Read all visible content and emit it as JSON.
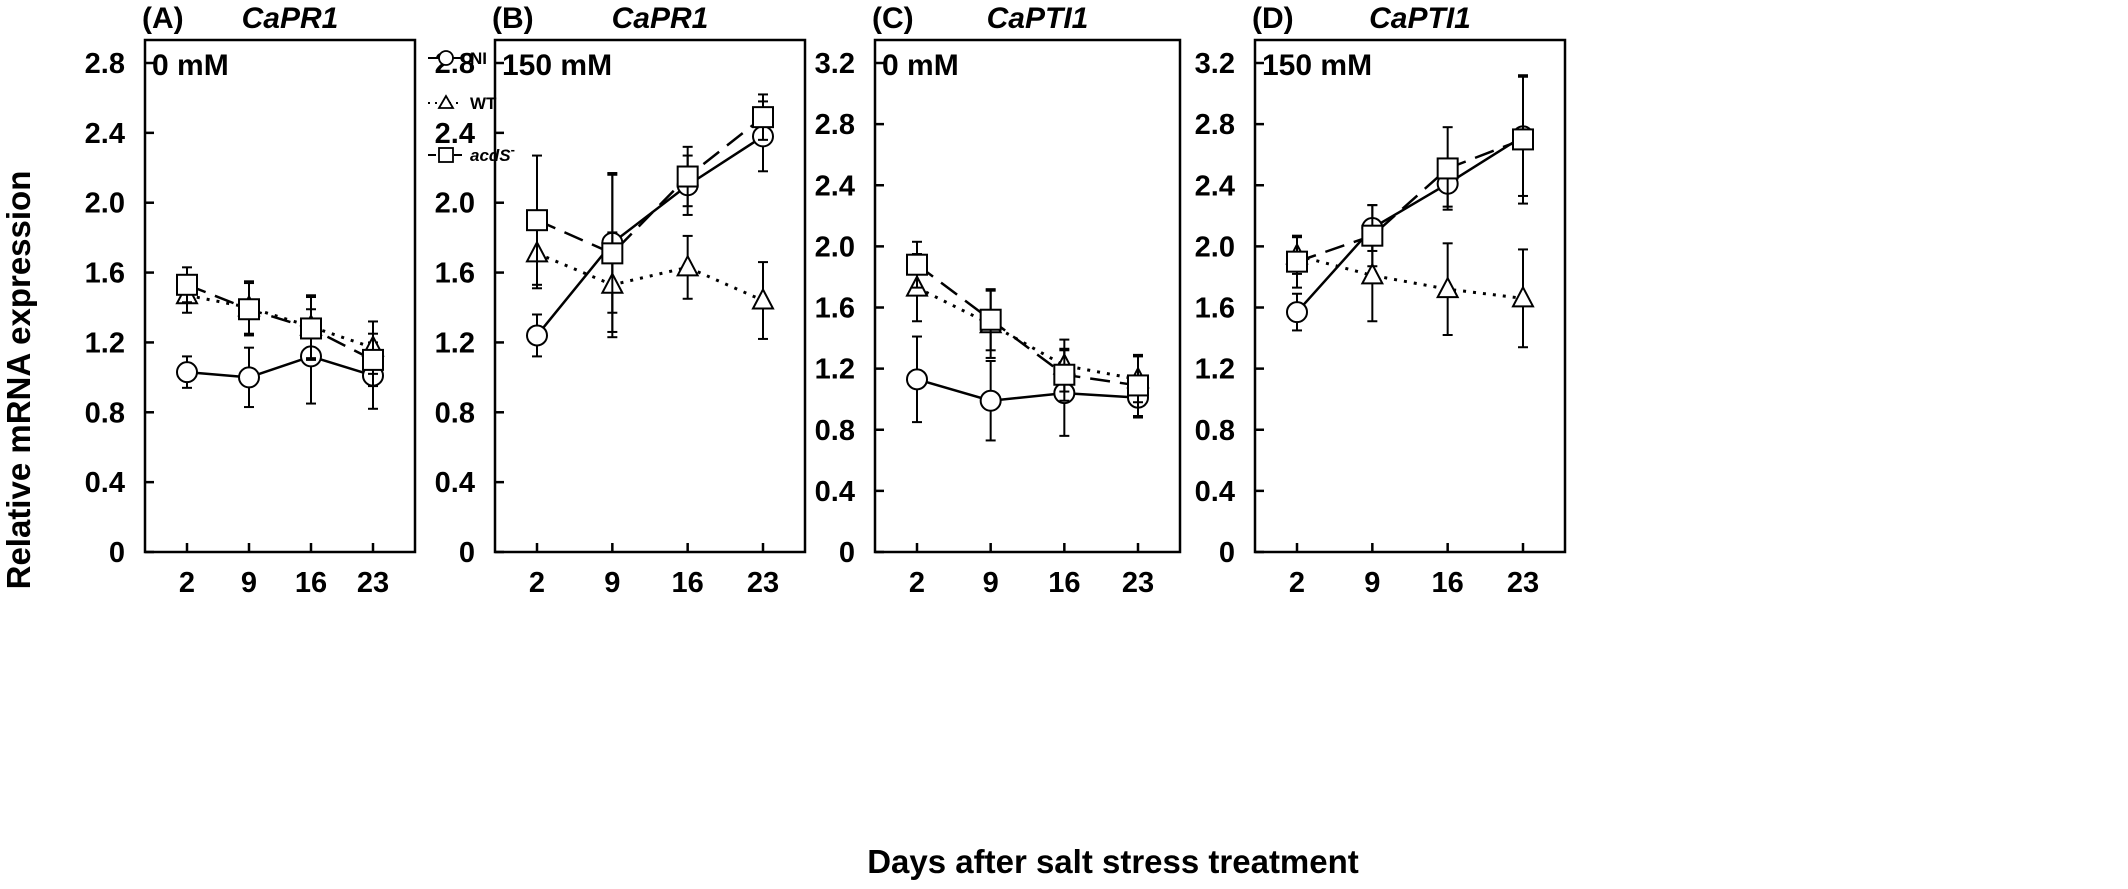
{
  "figure": {
    "ylabel": "Relative mRNA expression",
    "xlabel": "Days after salt stress treatment"
  },
  "legend": {
    "items": [
      {
        "label": "NI",
        "marker": "circle",
        "line": "solid"
      },
      {
        "label": "WT",
        "marker": "triangle",
        "line": "dotted"
      },
      {
        "label": "acdS",
        "superscript": "-",
        "marker": "square",
        "line": "dashed"
      }
    ]
  },
  "chart_data": [
    {
      "type": "line",
      "panel": "(A)",
      "title": "CaPR1",
      "condition": "0 mM",
      "x": [
        2,
        9,
        16,
        23
      ],
      "ylim": [
        0,
        2.8
      ],
      "yticks": [
        "0",
        "0.4",
        "0.8",
        "1.2",
        "1.6",
        "2.0",
        "2.4",
        "2.8"
      ],
      "series": [
        {
          "name": "NI",
          "values": [
            1.03,
            1.0,
            1.12,
            1.01
          ],
          "errors": [
            0.09,
            0.17,
            0.27,
            0.19
          ]
        },
        {
          "name": "WT",
          "values": [
            1.47,
            1.4,
            1.29,
            1.17
          ],
          "errors": [
            0.1,
            0.15,
            0.18,
            0.15
          ]
        },
        {
          "name": "acdS-",
          "values": [
            1.53,
            1.39,
            1.28,
            1.1
          ],
          "errors": [
            0.1,
            0.15,
            0.18,
            0.15
          ]
        }
      ]
    },
    {
      "type": "line",
      "panel": "(B)",
      "title": "CaPR1",
      "condition": "150 mM",
      "x": [
        2,
        9,
        16,
        23
      ],
      "ylim": [
        0,
        2.8
      ],
      "yticks": [
        "0",
        "0.4",
        "0.8",
        "1.2",
        "1.6",
        "2.0",
        "2.4",
        "2.8"
      ],
      "series": [
        {
          "name": "NI",
          "values": [
            1.24,
            1.77,
            2.1,
            2.38
          ],
          "errors": [
            0.12,
            0.4,
            0.17,
            0.2
          ]
        },
        {
          "name": "WT",
          "values": [
            1.71,
            1.53,
            1.63,
            1.44
          ],
          "errors": [
            0.2,
            0.3,
            0.18,
            0.22
          ]
        },
        {
          "name": "acdS-",
          "values": [
            1.9,
            1.71,
            2.15,
            2.49
          ],
          "errors": [
            0.37,
            0.45,
            0.17,
            0.13
          ]
        }
      ]
    },
    {
      "type": "line",
      "panel": "(C)",
      "title": "CaPTI1",
      "condition": "0 mM",
      "x": [
        2,
        9,
        16,
        23
      ],
      "ylim": [
        0,
        3.2
      ],
      "yticks": [
        "0",
        "0.4",
        "0.8",
        "1.2",
        "1.6",
        "2.0",
        "2.4",
        "2.8",
        "3.2"
      ],
      "series": [
        {
          "name": "NI",
          "values": [
            1.13,
            0.99,
            1.04,
            1.01
          ],
          "errors": [
            0.28,
            0.26,
            0.28,
            0.13
          ]
        },
        {
          "name": "WT",
          "values": [
            1.73,
            1.49,
            1.22,
            1.13
          ],
          "errors": [
            0.22,
            0.22,
            0.17,
            0.15
          ]
        },
        {
          "name": "acdS-",
          "values": [
            1.88,
            1.52,
            1.16,
            1.09
          ],
          "errors": [
            0.15,
            0.2,
            0.17,
            0.2
          ]
        }
      ]
    },
    {
      "type": "line",
      "panel": "(D)",
      "title": "CaPTI1",
      "condition": "150 mM",
      "x": [
        2,
        9,
        16,
        23
      ],
      "ylim": [
        0,
        3.2
      ],
      "yticks": [
        "0",
        "0.4",
        "0.8",
        "1.2",
        "1.6",
        "2.0",
        "2.4",
        "2.8",
        "3.2"
      ],
      "series": [
        {
          "name": "NI",
          "values": [
            1.57,
            2.12,
            2.41,
            2.72
          ],
          "errors": [
            0.12,
            0.15,
            0.15,
            0.39
          ]
        },
        {
          "name": "WT",
          "values": [
            1.94,
            1.81,
            1.72,
            1.66
          ],
          "errors": [
            0.12,
            0.3,
            0.3,
            0.32
          ]
        },
        {
          "name": "acdS-",
          "values": [
            1.9,
            2.07,
            2.51,
            2.7
          ],
          "errors": [
            0.17,
            0.2,
            0.27,
            0.42
          ]
        }
      ]
    }
  ]
}
